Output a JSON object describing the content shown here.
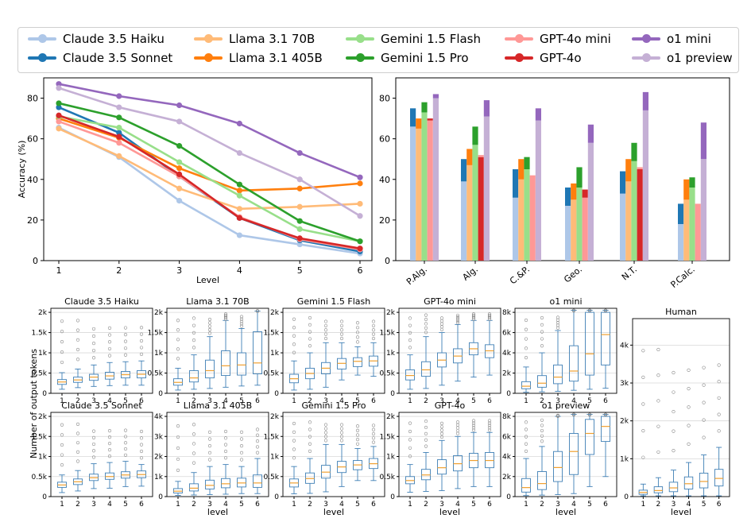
{
  "legend": {
    "items": [
      {
        "name": "Claude 3.5 Haiku",
        "color": "#aec7e8"
      },
      {
        "name": "Claude 3.5 Sonnet",
        "color": "#1f77b4"
      },
      {
        "name": "Llama 3.1 70B",
        "color": "#ffbb78"
      },
      {
        "name": "Llama 3.1 405B",
        "color": "#ff7f0e"
      },
      {
        "name": "Gemini 1.5 Flash",
        "color": "#98df8a"
      },
      {
        "name": "Gemini 1.5 Pro",
        "color": "#2ca02c"
      },
      {
        "name": "GPT-4o mini",
        "color": "#ff9896"
      },
      {
        "name": "GPT-4o",
        "color": "#d62728"
      },
      {
        "name": "o1 mini",
        "color": "#9467bd"
      },
      {
        "name": "o1 preview",
        "color": "#c5b0d5"
      }
    ]
  },
  "chart_data": [
    {
      "type": "line",
      "xlabel": "Level",
      "ylabel": "Accuracy (%)",
      "x": [
        1,
        2,
        3,
        4,
        5,
        6
      ],
      "ylim": [
        0,
        90
      ],
      "yticks": [
        0,
        20,
        40,
        60,
        80
      ],
      "series": [
        {
          "name": "Claude 3.5 Haiku",
          "values": [
            65.5,
            51,
            29.5,
            12.5,
            8,
            3.5
          ]
        },
        {
          "name": "Claude 3.5 Sonnet",
          "values": [
            75.5,
            63,
            41.5,
            21,
            10,
            4.5
          ]
        },
        {
          "name": "Llama 3.1 70B",
          "values": [
            65,
            51.5,
            35.5,
            25.5,
            26.5,
            28
          ]
        },
        {
          "name": "Llama 3.1 405B",
          "values": [
            70,
            60.5,
            45.5,
            34.5,
            35.5,
            38
          ]
        },
        {
          "name": "Gemini 1.5 Flash",
          "values": [
            71,
            65.5,
            48.5,
            32,
            15.5,
            9.5
          ]
        },
        {
          "name": "Gemini 1.5 Pro",
          "values": [
            77.5,
            70.5,
            56.5,
            37.5,
            19.5,
            9.5
          ]
        },
        {
          "name": "GPT-4o mini",
          "values": [
            68.5,
            58,
            41.5,
            21.5,
            10.5,
            5.5
          ]
        },
        {
          "name": "GPT-4o",
          "values": [
            71.5,
            61,
            42.5,
            21,
            11,
            6
          ]
        },
        {
          "name": "o1 mini",
          "values": [
            87,
            81,
            76.5,
            67.5,
            53,
            41
          ]
        },
        {
          "name": "o1 preview",
          "values": [
            85,
            75.5,
            68.5,
            53,
            40,
            22
          ]
        }
      ]
    },
    {
      "type": "bar",
      "categories": [
        "P.Alg.",
        "Alg.",
        "C.&P.",
        "Geo.",
        "N.T.",
        "P.Calc."
      ],
      "ylim": [
        0,
        90
      ],
      "yticks": [
        0,
        20,
        40,
        60,
        80
      ],
      "series": [
        {
          "name": "Claude 3.5 Haiku",
          "values": [
            66,
            39,
            31,
            27,
            33,
            18
          ]
        },
        {
          "name": "Claude 3.5 Sonnet",
          "values": [
            75,
            50,
            45,
            36,
            44,
            28
          ]
        },
        {
          "name": "Llama 3.1 70B",
          "values": [
            65,
            47,
            40,
            30,
            39,
            30
          ]
        },
        {
          "name": "Llama 3.1 405B",
          "values": [
            70,
            55,
            50,
            38,
            50,
            40
          ]
        },
        {
          "name": "Gemini 1.5 Flash",
          "values": [
            73,
            57,
            45,
            36,
            49,
            36
          ]
        },
        {
          "name": "Gemini 1.5 Pro",
          "values": [
            78,
            66,
            51,
            46,
            58,
            41
          ]
        },
        {
          "name": "GPT-4o mini",
          "values": [
            69,
            52,
            42,
            31,
            46,
            28
          ]
        },
        {
          "name": "GPT-4o",
          "values": [
            70,
            51,
            42,
            35,
            45,
            28
          ]
        },
        {
          "name": "o1 mini",
          "values": [
            82,
            79,
            75,
            67,
            83,
            68
          ]
        },
        {
          "name": "o1 preview",
          "values": [
            80,
            71,
            69,
            58,
            74,
            50
          ]
        }
      ]
    },
    {
      "type": "box",
      "ylabel": "Number of output tokens",
      "xlabel": "level",
      "x": [
        1,
        2,
        3,
        4,
        5,
        6
      ],
      "panels": [
        {
          "title": "Claude 3.5 Haiku",
          "ymax": 2100,
          "yticks": [
            0,
            500,
            1000,
            1500,
            2000
          ],
          "yticklabels": [
            "0",
            "0.5k",
            "1k",
            "1.5k",
            "2k"
          ],
          "boxes": [
            {
              "q1": 220,
              "med": 280,
              "q3": 340,
              "lo": 100,
              "hi": 510
            },
            {
              "q1": 270,
              "med": 330,
              "q3": 400,
              "lo": 140,
              "hi": 600
            },
            {
              "q1": 320,
              "med": 400,
              "q3": 470,
              "lo": 170,
              "hi": 700
            },
            {
              "q1": 350,
              "med": 430,
              "q3": 520,
              "lo": 190,
              "hi": 760
            },
            {
              "q1": 380,
              "med": 460,
              "q3": 540,
              "lo": 200,
              "hi": 780
            },
            {
              "q1": 380,
              "med": 470,
              "q3": 560,
              "lo": 200,
              "hi": 800
            }
          ]
        },
        {
          "title": "Llama 3.1 70B",
          "ymax": 2100,
          "yticks": [
            0,
            500,
            1000,
            1500,
            2000
          ],
          "yticklabels": [
            "0",
            "0.5k",
            "1k",
            "1.5k",
            "2k"
          ],
          "boxes": [
            {
              "q1": 200,
              "med": 270,
              "q3": 360,
              "lo": 80,
              "hi": 620
            },
            {
              "q1": 280,
              "med": 380,
              "q3": 560,
              "lo": 100,
              "hi": 950
            },
            {
              "q1": 380,
              "med": 560,
              "q3": 820,
              "lo": 120,
              "hi": 1400
            },
            {
              "q1": 440,
              "med": 680,
              "q3": 1050,
              "lo": 150,
              "hi": 1800
            },
            {
              "q1": 450,
              "med": 700,
              "q3": 1000,
              "lo": 180,
              "hi": 1600
            },
            {
              "q1": 480,
              "med": 750,
              "q3": 1520,
              "lo": 200,
              "hi": 2030
            }
          ]
        },
        {
          "title": "Gemini 1.5 Flash",
          "ymax": 2100,
          "yticks": [
            0,
            500,
            1000,
            1500,
            2000
          ],
          "yticklabels": [
            "0",
            "0.5k",
            "1k",
            "1.5k",
            "2k"
          ],
          "boxes": [
            {
              "q1": 260,
              "med": 360,
              "q3": 470,
              "lo": 80,
              "hi": 800
            },
            {
              "q1": 360,
              "med": 490,
              "q3": 620,
              "lo": 100,
              "hi": 1000
            },
            {
              "q1": 480,
              "med": 620,
              "q3": 760,
              "lo": 150,
              "hi": 1250
            },
            {
              "q1": 600,
              "med": 740,
              "q3": 860,
              "lo": 330,
              "hi": 1250
            },
            {
              "q1": 660,
              "med": 790,
              "q3": 880,
              "lo": 450,
              "hi": 1150
            },
            {
              "q1": 670,
              "med": 800,
              "q3": 920,
              "lo": 420,
              "hi": 1250
            }
          ]
        },
        {
          "title": "GPT-4o mini",
          "ymax": 2100,
          "yticks": [
            0,
            500,
            1000,
            1500,
            2000
          ],
          "yticklabels": [
            "0",
            "0.5k",
            "1k",
            "1.5k",
            "2k"
          ],
          "boxes": [
            {
              "q1": 330,
              "med": 440,
              "q3": 580,
              "lo": 100,
              "hi": 950
            },
            {
              "q1": 420,
              "med": 580,
              "q3": 780,
              "lo": 120,
              "hi": 1400
            },
            {
              "q1": 650,
              "med": 820,
              "q3": 1000,
              "lo": 200,
              "hi": 1500
            },
            {
              "q1": 750,
              "med": 920,
              "q3": 1100,
              "lo": 300,
              "hi": 1700
            },
            {
              "q1": 950,
              "med": 1100,
              "q3": 1250,
              "lo": 400,
              "hi": 1800
            },
            {
              "q1": 880,
              "med": 1050,
              "q3": 1200,
              "lo": 450,
              "hi": 1800
            }
          ]
        },
        {
          "title": "o1 mini",
          "ymax": 8400,
          "yticks": [
            0,
            2000,
            4000,
            6000,
            8000
          ],
          "yticklabels": [
            "0",
            "2k",
            "4k",
            "6k",
            "8k"
          ],
          "boxes": [
            {
              "q1": 450,
              "med": 700,
              "q3": 1150,
              "lo": 100,
              "hi": 2600
            },
            {
              "q1": 600,
              "med": 1000,
              "q3": 1750,
              "lo": 150,
              "hi": 4000
            },
            {
              "q1": 950,
              "med": 1600,
              "q3": 2800,
              "lo": 200,
              "hi": 6200
            },
            {
              "q1": 1200,
              "med": 2200,
              "q3": 4700,
              "lo": 300,
              "hi": 8200
            },
            {
              "q1": 1800,
              "med": 3900,
              "q3": 8000,
              "lo": 400,
              "hi": 8200
            },
            {
              "q1": 2800,
              "med": 5800,
              "q3": 8000,
              "lo": 500,
              "hi": 8200
            }
          ]
        },
        {
          "title": "Human",
          "ymax": 4700,
          "yticks": [
            0,
            1000,
            2000,
            3000,
            4000
          ],
          "yticklabels": [
            "0",
            "1k",
            "2k",
            "3k",
            "4k"
          ],
          "boxes": [
            {
              "q1": 60,
              "med": 110,
              "q3": 170,
              "lo": 20,
              "hi": 330
            },
            {
              "q1": 100,
              "med": 160,
              "q3": 260,
              "lo": 20,
              "hi": 500
            },
            {
              "q1": 130,
              "med": 230,
              "q3": 380,
              "lo": 20,
              "hi": 700
            },
            {
              "q1": 200,
              "med": 340,
              "q3": 520,
              "lo": 20,
              "hi": 900
            },
            {
              "q1": 230,
              "med": 400,
              "q3": 620,
              "lo": 20,
              "hi": 1100
            },
            {
              "q1": 280,
              "med": 480,
              "q3": 720,
              "lo": 20,
              "hi": 1300
            }
          ]
        },
        {
          "title": "Claude 3.5 Sonnet",
          "ymax": 2100,
          "yticks": [
            0,
            500,
            1000,
            1500,
            2000
          ],
          "yticklabels": [
            "0",
            "0.5k",
            "1k",
            "1.5k",
            "2k"
          ],
          "boxes": [
            {
              "q1": 230,
              "med": 290,
              "q3": 360,
              "lo": 100,
              "hi": 540
            },
            {
              "q1": 300,
              "med": 370,
              "q3": 440,
              "lo": 140,
              "hi": 650
            },
            {
              "q1": 400,
              "med": 470,
              "q3": 560,
              "lo": 200,
              "hi": 820
            },
            {
              "q1": 430,
              "med": 500,
              "q3": 590,
              "lo": 210,
              "hi": 850
            },
            {
              "q1": 460,
              "med": 540,
              "q3": 620,
              "lo": 250,
              "hi": 880
            },
            {
              "q1": 470,
              "med": 550,
              "q3": 640,
              "lo": 260,
              "hi": 800
            }
          ]
        },
        {
          "title": "Llama 3.1 405B",
          "ymax": 4200,
          "yticks": [
            0,
            1000,
            2000,
            3000,
            4000
          ],
          "yticklabels": [
            "0",
            "1k",
            "2k",
            "3k",
            "4k"
          ],
          "boxes": [
            {
              "q1": 180,
              "med": 270,
              "q3": 400,
              "lo": 60,
              "hi": 760
            },
            {
              "q1": 280,
              "med": 420,
              "q3": 640,
              "lo": 80,
              "hi": 1200
            },
            {
              "q1": 380,
              "med": 560,
              "q3": 820,
              "lo": 100,
              "hi": 1500
            },
            {
              "q1": 440,
              "med": 640,
              "q3": 900,
              "lo": 120,
              "hi": 1600
            },
            {
              "q1": 480,
              "med": 680,
              "q3": 920,
              "lo": 150,
              "hi": 1500
            },
            {
              "q1": 460,
              "med": 680,
              "q3": 1080,
              "lo": 150,
              "hi": 1900
            }
          ]
        },
        {
          "title": "Gemini 1.5 Pro",
          "ymax": 2100,
          "yticks": [
            0,
            500,
            1000,
            1500,
            2000
          ],
          "yticklabels": [
            "0",
            "0.5k",
            "1k",
            "1.5k",
            "2k"
          ],
          "boxes": [
            {
              "q1": 240,
              "med": 340,
              "q3": 440,
              "lo": 70,
              "hi": 750
            },
            {
              "q1": 330,
              "med": 450,
              "q3": 590,
              "lo": 80,
              "hi": 950
            },
            {
              "q1": 460,
              "med": 610,
              "q3": 780,
              "lo": 120,
              "hi": 1300
            },
            {
              "q1": 600,
              "med": 740,
              "q3": 880,
              "lo": 250,
              "hi": 1300
            },
            {
              "q1": 670,
              "med": 790,
              "q3": 900,
              "lo": 400,
              "hi": 1200
            },
            {
              "q1": 700,
              "med": 820,
              "q3": 950,
              "lo": 400,
              "hi": 1250
            }
          ]
        },
        {
          "title": "GPT-4o",
          "ymax": 2100,
          "yticks": [
            0,
            500,
            1000,
            1500,
            2000
          ],
          "yticklabels": [
            "0",
            "0.5k",
            "1k",
            "1.5k",
            "2k"
          ],
          "boxes": [
            {
              "q1": 320,
              "med": 400,
              "q3": 500,
              "lo": 110,
              "hi": 800
            },
            {
              "q1": 420,
              "med": 540,
              "q3": 680,
              "lo": 130,
              "hi": 1100
            },
            {
              "q1": 560,
              "med": 720,
              "q3": 920,
              "lo": 150,
              "hi": 1400
            },
            {
              "q1": 640,
              "med": 820,
              "q3": 1020,
              "lo": 200,
              "hi": 1500
            },
            {
              "q1": 720,
              "med": 900,
              "q3": 1080,
              "lo": 250,
              "hi": 1600
            },
            {
              "q1": 720,
              "med": 900,
              "q3": 1100,
              "lo": 250,
              "hi": 1600
            }
          ]
        },
        {
          "title": "o1 preview",
          "ymax": 8400,
          "yticks": [
            0,
            2000,
            4000,
            6000,
            8000
          ],
          "yticklabels": [
            "0",
            "2k",
            "4k",
            "6k",
            "8k"
          ],
          "boxes": [
            {
              "q1": 450,
              "med": 900,
              "q3": 1800,
              "lo": 100,
              "hi": 3800
            },
            {
              "q1": 700,
              "med": 1300,
              "q3": 2500,
              "lo": 150,
              "hi": 5000
            },
            {
              "q1": 1500,
              "med": 2900,
              "q3": 4500,
              "lo": 200,
              "hi": 8000
            },
            {
              "q1": 2200,
              "med": 4500,
              "q3": 6300,
              "lo": 300,
              "hi": 8200
            },
            {
              "q1": 4200,
              "med": 6300,
              "q3": 7700,
              "lo": 1000,
              "hi": 8200
            },
            {
              "q1": 5500,
              "med": 7000,
              "q3": 8000,
              "lo": 2000,
              "hi": 8200
            }
          ]
        }
      ]
    }
  ]
}
